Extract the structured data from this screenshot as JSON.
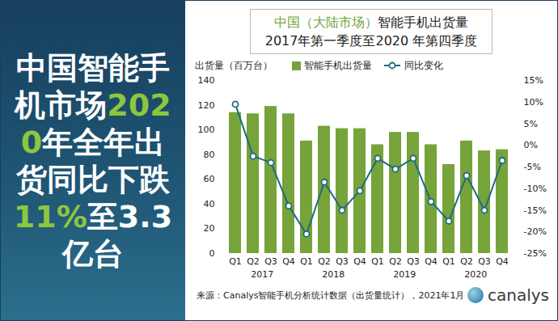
{
  "headline": [
    {
      "text": "中国智能手机市场",
      "highlight": false
    },
    {
      "text": "2020",
      "highlight": true
    },
    {
      "text": "年全年出货同比下跌",
      "highlight": false
    },
    {
      "text": "11%",
      "highlight": true
    },
    {
      "text": "至3.3亿台",
      "highlight": false
    }
  ],
  "chart_data": {
    "type": "bar",
    "title": "中国（大陆市场）智能手机出货量",
    "title_highlight": "中国（大陆市场）",
    "subtitle": "2017年第一季度至2020 年第四季度",
    "y_label": "出货量（百万台）",
    "categories": [
      "Q1",
      "Q2",
      "Q3",
      "Q4",
      "Q1",
      "Q2",
      "Q3",
      "Q4",
      "Q1",
      "Q2",
      "Q3",
      "Q4",
      "Q1",
      "Q2",
      "Q3",
      "Q4"
    ],
    "category_groups": [
      "2017",
      "2018",
      "2019",
      "2020"
    ],
    "series": [
      {
        "name": "智能手机出货量",
        "type": "bar",
        "color": "#76a33a",
        "values": [
          114,
          113,
          119,
          113,
          91,
          103,
          101,
          101,
          88,
          98,
          98,
          88,
          72,
          91,
          83,
          84
        ]
      },
      {
        "name": "同比变化",
        "type": "line",
        "axis": "y2",
        "color": "#1f6a80",
        "marker": "circle",
        "values": [
          9.5,
          -2.5,
          -4,
          -14,
          -20.5,
          -8.5,
          -15,
          -10.5,
          -3,
          -5.5,
          -3,
          -13,
          -17.5,
          -7,
          -15,
          -3.5
        ]
      }
    ],
    "ylim": [
      0,
      140
    ],
    "yticks": [
      0,
      20,
      40,
      60,
      80,
      100,
      120,
      140
    ],
    "y2lim": [
      -25,
      15
    ],
    "y2ticks": [
      {
        "value": -25,
        "label": "-25%"
      },
      {
        "value": -20,
        "label": "-20%"
      },
      {
        "value": -15,
        "label": "-15%"
      },
      {
        "value": -10,
        "label": "-10%"
      },
      {
        "value": -5,
        "label": "-5%"
      },
      {
        "value": 0,
        "label": "0%"
      },
      {
        "value": 5,
        "label": "5%"
      },
      {
        "value": 10,
        "label": "10%"
      },
      {
        "value": 15,
        "label": "15%"
      }
    ],
    "grid": false,
    "legend": "top"
  },
  "source": "来源：Canalys智能手机分析统计数据（出货量统计），2021年1月",
  "logo": "canalys"
}
